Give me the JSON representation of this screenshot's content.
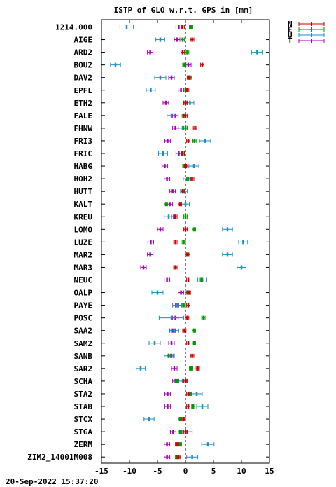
{
  "chart_data": {
    "type": "scatter",
    "title": "ISTP of GLO w.r.t. GPS in [mm]",
    "xlim": [
      -15,
      15
    ],
    "xticks": [
      -15,
      -10,
      -5,
      0,
      5,
      10,
      15
    ],
    "reference_line": 0,
    "stations": [
      "1214.000",
      "AIGE",
      "ARD2",
      "BOU2",
      "DAV2",
      "EPFL",
      "ETH2",
      "FALE",
      "FHNW",
      "FRI3",
      "FRIC",
      "HABG",
      "HOH2",
      "HUTT",
      "KALT",
      "KREU",
      "LOMO",
      "LUZE",
      "MAR2",
      "MAR3",
      "NEUC",
      "OALP",
      "PAYE",
      "POSC",
      "SAA2",
      "SAM2",
      "SANB",
      "SAR2",
      "SCHA",
      "STA2",
      "STAB",
      "STCX",
      "STGA",
      "ZERM",
      "ZIM2_14001M008"
    ],
    "series": [
      {
        "name": "N",
        "color": "#cc0000",
        "values": [
          -0.5,
          1.2,
          -0.5,
          3.0,
          0.6,
          0.3,
          0.0,
          0.0,
          1.7,
          0.5,
          -0.5,
          0.1,
          1.2,
          -0.5,
          -1.0,
          -1.8,
          0.0,
          -1.8,
          0.3,
          -1.8,
          0.5,
          0.6,
          0.5,
          0.3,
          -0.2,
          0.5,
          1.2,
          2.2,
          0.0,
          0.5,
          0.5,
          -0.3,
          0.0,
          -1.5,
          -1.2
        ],
        "err": [
          0.3,
          0.3,
          0.3,
          0.3,
          0.3,
          0.3,
          0.3,
          0.3,
          0.3,
          0.3,
          0.3,
          0.3,
          0.3,
          0.3,
          0.3,
          0.3,
          0.3,
          0.3,
          0.3,
          0.3,
          0.3,
          0.3,
          0.3,
          0.3,
          0.3,
          0.3,
          0.3,
          0.3,
          0.3,
          0.3,
          0.3,
          0.3,
          0.3,
          0.3,
          0.3
        ]
      },
      {
        "name": "E",
        "color": "#009900",
        "values": [
          1.0,
          -0.5,
          0.3,
          -0.2,
          0.8,
          0.0,
          0.0,
          -0.3,
          0.0,
          1.6,
          -0.5,
          -0.2,
          0.5,
          -0.5,
          -3.5,
          0.0,
          1.5,
          -0.3,
          0.5,
          -1.8,
          2.8,
          0.3,
          -0.3,
          3.2,
          1.5,
          1.5,
          -3.0,
          1.0,
          -1.5,
          0.8,
          1.4,
          -1.0,
          -1.0,
          -1.0,
          -1.5
        ],
        "err": [
          0.3,
          0.3,
          0.3,
          0.3,
          0.3,
          0.3,
          0.3,
          0.3,
          0.3,
          0.3,
          0.3,
          0.3,
          0.3,
          0.3,
          0.3,
          0.3,
          0.3,
          0.3,
          0.3,
          0.3,
          0.3,
          0.3,
          0.3,
          0.3,
          0.3,
          0.3,
          0.3,
          0.3,
          0.3,
          0.3,
          0.3,
          0.3,
          0.3,
          0.3,
          0.3
        ]
      },
      {
        "name": "U",
        "color": "#1a8fc8",
        "values": [
          -10.5,
          -4.5,
          12.8,
          -12.5,
          -4.5,
          -6.2,
          0.8,
          -2.5,
          -0.5,
          3.5,
          -4.0,
          1.5,
          0.3,
          -0.3,
          0.0,
          -3.0,
          7.5,
          10.3,
          7.5,
          10.0,
          3.0,
          -5.0,
          -1.5,
          -2.5,
          -2.0,
          -5.5,
          -3.0,
          -8.0,
          -0.5,
          2.0,
          3.0,
          -6.5,
          0.3,
          4.0,
          1.2
        ],
        "err": [
          1.2,
          0.8,
          1.0,
          0.9,
          1.0,
          0.8,
          0.7,
          0.8,
          0.8,
          1.0,
          0.8,
          0.9,
          0.7,
          0.6,
          0.7,
          0.8,
          0.9,
          0.8,
          0.9,
          0.8,
          0.8,
          1.0,
          0.8,
          2.2,
          0.8,
          1.0,
          0.8,
          0.8,
          0.7,
          1.0,
          1.0,
          0.9,
          0.9,
          1.1,
          1.0
        ]
      },
      {
        "name": "T",
        "color": "#aa00bb",
        "values": [
          -1.2,
          -1.5,
          -6.3,
          0.5,
          -2.5,
          -0.8,
          -3.5,
          -1.8,
          -1.8,
          -3.2,
          -1.2,
          -3.7,
          -3.3,
          -2.3,
          -2.8,
          -2.0,
          -4.5,
          -6.2,
          -6.3,
          -7.5,
          -3.3,
          -0.8,
          -1.3,
          -1.8,
          -2.3,
          -2.5,
          -2.5,
          -2.0,
          -1.8,
          -3.2,
          -3.2,
          -0.8,
          -2.2,
          -3.3,
          -3.3
        ],
        "err": [
          0.5,
          0.5,
          0.5,
          0.5,
          0.5,
          0.5,
          0.5,
          0.5,
          0.5,
          0.5,
          0.5,
          0.5,
          0.5,
          0.5,
          0.5,
          0.5,
          0.5,
          0.5,
          0.5,
          0.5,
          0.5,
          0.5,
          0.5,
          0.5,
          0.5,
          0.5,
          0.5,
          0.5,
          0.5,
          0.5,
          0.5,
          0.5,
          0.5,
          0.5,
          0.5
        ]
      }
    ],
    "legend_position": "top-right"
  },
  "footer": {
    "timestamp": "20-Sep-2022 15:37:20"
  }
}
